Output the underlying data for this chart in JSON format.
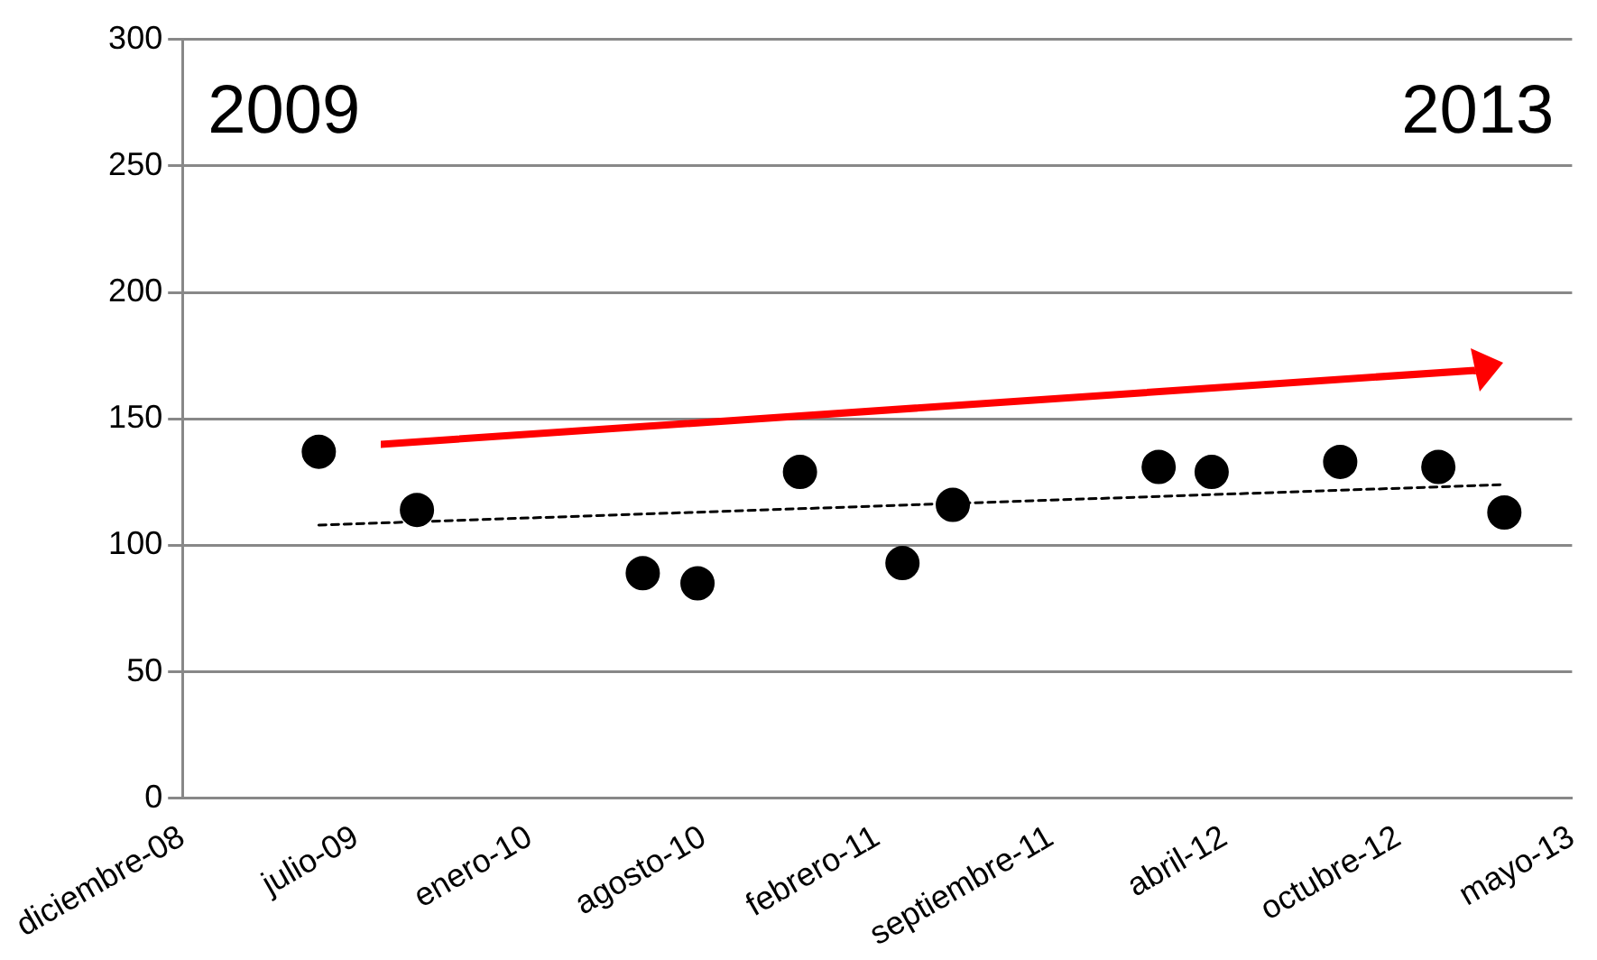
{
  "chart_data": {
    "type": "scatter",
    "x": [
      "2009-05-26",
      "2009-09-16",
      "2010-06-03",
      "2010-08-05",
      "2010-12-01",
      "2011-03-29",
      "2011-05-26",
      "2012-01-18",
      "2012-03-19",
      "2012-08-14",
      "2012-12-05",
      "2013-02-19"
    ],
    "series": [
      {
        "color": "#000000",
        "marker": "circle",
        "values": [
          137,
          114,
          89,
          85,
          129,
          93,
          116,
          131,
          129,
          133,
          131,
          113
        ]
      },
      {
        "type": "line",
        "color": "#000000",
        "marker": "none",
        "line_style": "dashed",
        "x": [
          "2009-05-26",
          "2013-02-19"
        ],
        "values": [
          108,
          124
        ]
      }
    ],
    "xlim": [
      "2008-12-20",
      "2013-05-08"
    ],
    "xticks": [
      {
        "value": "2008-12-20",
        "label": "diciembre-08"
      },
      {
        "value": "2009-07-08",
        "label": "julio-09"
      },
      {
        "value": "2010-01-24",
        "label": "enero-10"
      },
      {
        "value": "2010-08-12",
        "label": "agosto-10"
      },
      {
        "value": "2011-02-28",
        "label": "febrero-11"
      },
      {
        "value": "2011-09-16",
        "label": "septiembre-11"
      },
      {
        "value": "2012-04-03",
        "label": "abril-12"
      },
      {
        "value": "2012-10-20",
        "label": "octubre-12"
      },
      {
        "value": "2013-05-08",
        "label": "mayo-13"
      }
    ],
    "ylim": [
      0,
      300
    ],
    "yticks": [
      0,
      50,
      100,
      150,
      200,
      250,
      300
    ],
    "grid": "y",
    "annotations": [
      "2009",
      "2013"
    ]
  }
}
